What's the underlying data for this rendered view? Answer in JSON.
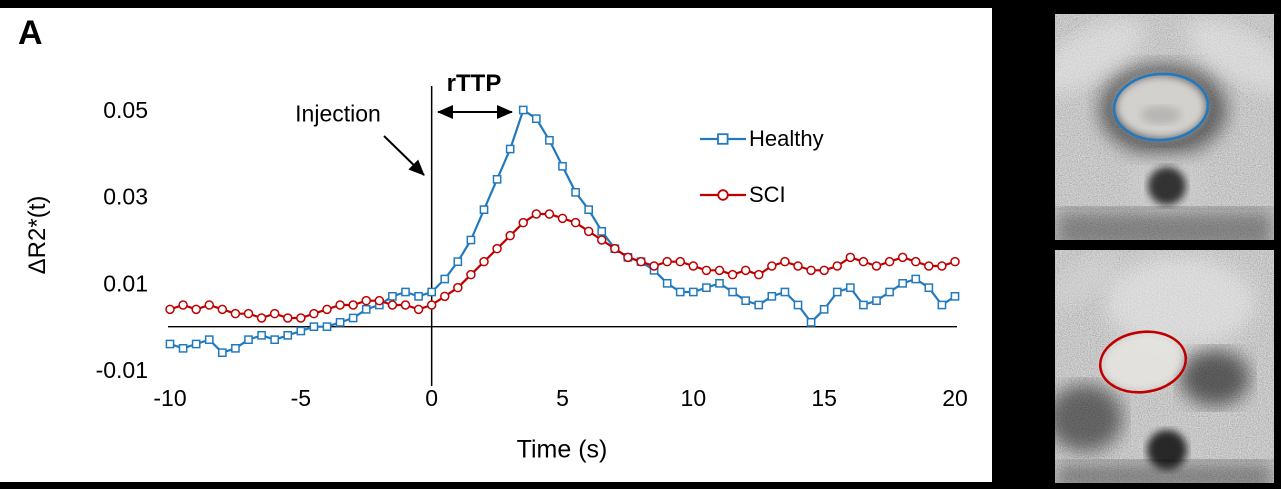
{
  "figure": {
    "panel_label": "A"
  },
  "chart_data": {
    "type": "line",
    "title": "",
    "xlabel": "Time (s)",
    "ylabel": "ΔR2*(t)",
    "xlim": [
      -10,
      20
    ],
    "ylim": [
      -0.015,
      0.056
    ],
    "xticks": [
      -10,
      -5,
      0,
      5,
      10,
      15,
      20
    ],
    "yticks": [
      0.05,
      0.03,
      0.01,
      -0.01
    ],
    "grid": false,
    "baseline_y": 0,
    "event_line_x": 0,
    "legend_position": "upper right",
    "annotations": [
      {
        "text": "Injection"
      },
      {
        "text": "rTTP"
      }
    ],
    "x": [
      -10,
      -9.5,
      -9,
      -8.5,
      -8,
      -7.5,
      -7,
      -6.5,
      -6,
      -5.5,
      -5,
      -4.5,
      -4,
      -3.5,
      -3,
      -2.5,
      -2,
      -1.5,
      -1,
      -0.5,
      0,
      0.5,
      1,
      1.5,
      2,
      2.5,
      3,
      3.5,
      4,
      4.5,
      5,
      5.5,
      6,
      6.5,
      7,
      7.5,
      8,
      8.5,
      9,
      9.5,
      10,
      10.5,
      11,
      11.5,
      12,
      12.5,
      13,
      13.5,
      14,
      14.5,
      15,
      15.5,
      16,
      16.5,
      17,
      17.5,
      18,
      18.5,
      19,
      19.5,
      20
    ],
    "series": [
      {
        "name": "Healthy",
        "color": "#2279BE",
        "marker": "square",
        "values": [
          -0.004,
          -0.005,
          -0.004,
          -0.003,
          -0.006,
          -0.005,
          -0.003,
          -0.002,
          -0.003,
          -0.002,
          -0.001,
          0,
          0,
          0.001,
          0.002,
          0.004,
          0.005,
          0.007,
          0.008,
          0.007,
          0.008,
          0.011,
          0.015,
          0.02,
          0.027,
          0.034,
          0.041,
          0.05,
          0.048,
          0.043,
          0.037,
          0.031,
          0.027,
          0.022,
          0.018,
          0.016,
          0.015,
          0.013,
          0.01,
          0.008,
          0.008,
          0.009,
          0.01,
          0.008,
          0.006,
          0.005,
          0.007,
          0.008,
          0.005,
          0.001,
          0.004,
          0.008,
          0.009,
          0.005,
          0.006,
          0.008,
          0.01,
          0.011,
          0.009,
          0.005,
          0.007
        ]
      },
      {
        "name": "SCI",
        "color": "#C00000",
        "marker": "circle",
        "values": [
          0.004,
          0.005,
          0.004,
          0.005,
          0.004,
          0.003,
          0.003,
          0.002,
          0.003,
          0.002,
          0.002,
          0.003,
          0.004,
          0.005,
          0.005,
          0.006,
          0.006,
          0.005,
          0.005,
          0.004,
          0.005,
          0.007,
          0.009,
          0.012,
          0.015,
          0.018,
          0.021,
          0.024,
          0.026,
          0.026,
          0.025,
          0.024,
          0.022,
          0.02,
          0.018,
          0.016,
          0.015,
          0.014,
          0.015,
          0.015,
          0.014,
          0.013,
          0.013,
          0.012,
          0.013,
          0.012,
          0.014,
          0.015,
          0.014,
          0.013,
          0.013,
          0.014,
          0.016,
          0.015,
          0.014,
          0.015,
          0.016,
          0.015,
          0.014,
          0.014,
          0.015
        ]
      }
    ]
  },
  "mri_panels": {
    "top": {
      "outline_color": "#2279BE"
    },
    "bottom": {
      "outline_color": "#C00000"
    }
  }
}
